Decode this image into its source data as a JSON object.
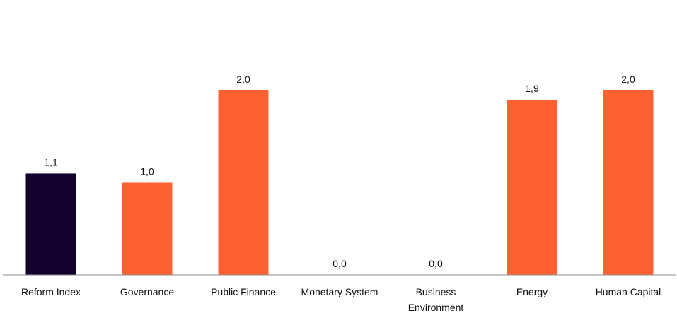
{
  "chart_data": {
    "type": "bar",
    "categories": [
      "Reform Index",
      "Governance",
      "Public Finance",
      "Monetary System",
      "Business Environment",
      "Energy",
      "Human Capital"
    ],
    "values": [
      1.1,
      1.0,
      2.0,
      0.0,
      0.0,
      1.9,
      2.0
    ],
    "value_labels": [
      "1,1",
      "1,0",
      "2,0",
      "0,0",
      "0,0",
      "1,9",
      "2,0"
    ],
    "category_lines": [
      [
        "Reform Index"
      ],
      [
        "Governance"
      ],
      [
        "Public Finance"
      ],
      [
        "Monetary System"
      ],
      [
        "Business",
        "Environment"
      ],
      [
        "Energy"
      ],
      [
        "Human Capital"
      ]
    ],
    "colors": [
      "#12002e",
      "#ff6133",
      "#ff6133",
      "#ff6133",
      "#ff6133",
      "#ff6133",
      "#ff6133"
    ],
    "axis_color": "#8c8c8c",
    "ylim": [
      0,
      2.0
    ],
    "grid": false,
    "legend": "none"
  }
}
